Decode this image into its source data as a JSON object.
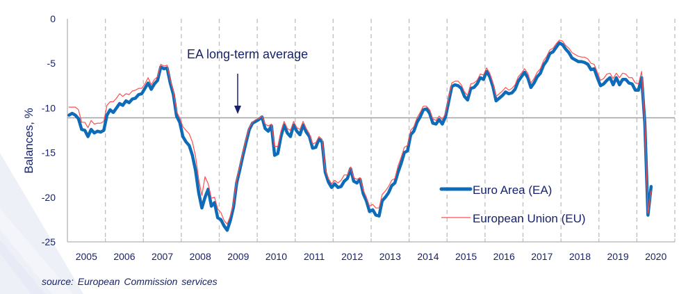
{
  "chart_data": {
    "type": "line",
    "title": "",
    "xlabel": "",
    "ylabel": "Balances, %",
    "ylim": [
      -25,
      0
    ],
    "yticks": [
      "0",
      "-5",
      "-10",
      "-15",
      "-20",
      "-25"
    ],
    "ytick_values": [
      0,
      -5,
      -10,
      -15,
      -20,
      -25
    ],
    "xticks": [
      "2005",
      "2006",
      "2007",
      "2008",
      "2009",
      "2010",
      "2011",
      "2012",
      "2013",
      "2014",
      "2015",
      "2016",
      "2017",
      "2018",
      "2019",
      "2020"
    ],
    "x_start": "2005-01",
    "x_end": "2020-05",
    "frequency": "monthly",
    "grid": "vertical dashed at year boundaries",
    "legend_position": "bottom-right",
    "reference_line": {
      "label": "EA long-term average",
      "value": -11.1
    },
    "annotations": [
      {
        "text": "EA long-term average",
        "points_to": "2009",
        "value": -11.1
      }
    ],
    "series": [
      {
        "name": "Euro Area (EA)",
        "color": "#0e6bb8",
        "values": [
          -10.8,
          -10.6,
          -10.8,
          -11.2,
          -12.4,
          -12.5,
          -13.2,
          -12.4,
          -12.8,
          -12.6,
          -12.7,
          -12.5,
          -10.8,
          -10.2,
          -10.5,
          -10.0,
          -9.5,
          -9.7,
          -9.2,
          -9.4,
          -9.0,
          -8.9,
          -8.5,
          -8.4,
          -7.8,
          -7.2,
          -7.9,
          -7.3,
          -6.9,
          -5.4,
          -5.6,
          -5.5,
          -7.2,
          -8.5,
          -10.9,
          -11.6,
          -13.2,
          -13.8,
          -14.2,
          -15.3,
          -17.0,
          -19.5,
          -21.2,
          -20.0,
          -19.1,
          -21.0,
          -20.6,
          -22.3,
          -22.5,
          -23.2,
          -23.7,
          -22.6,
          -21.1,
          -18.4,
          -16.9,
          -15.3,
          -13.8,
          -12.4,
          -11.7,
          -11.5,
          -11.3,
          -11.0,
          -12.3,
          -12.6,
          -12.0,
          -15.3,
          -15.1,
          -13.2,
          -11.9,
          -12.8,
          -13.2,
          -11.9,
          -12.6,
          -13.0,
          -11.9,
          -12.7,
          -13.2,
          -14.5,
          -14.4,
          -13.5,
          -13.8,
          -17.2,
          -18.3,
          -18.9,
          -18.5,
          -18.9,
          -18.8,
          -18.2,
          -17.9,
          -16.8,
          -18.2,
          -18.4,
          -18.0,
          -19.6,
          -20.4,
          -21.6,
          -21.4,
          -22.0,
          -22.1,
          -20.4,
          -20.0,
          -19.5,
          -18.7,
          -18.4,
          -17.2,
          -16.2,
          -15.0,
          -14.8,
          -13.0,
          -12.6,
          -11.6,
          -11.0,
          -10.2,
          -10.1,
          -10.6,
          -11.7,
          -11.8,
          -11.3,
          -11.8,
          -11.0,
          -9.3,
          -7.6,
          -7.4,
          -7.5,
          -7.8,
          -8.7,
          -9.1,
          -7.8,
          -7.7,
          -7.3,
          -6.6,
          -6.8,
          -5.9,
          -6.5,
          -7.6,
          -9.2,
          -8.9,
          -8.6,
          -8.2,
          -8.4,
          -8.3,
          -7.9,
          -7.0,
          -6.5,
          -6.0,
          -6.6,
          -7.7,
          -7.2,
          -6.5,
          -6.1,
          -5.2,
          -4.7,
          -3.9,
          -3.7,
          -3.2,
          -2.7,
          -2.9,
          -3.4,
          -3.8,
          -4.4,
          -4.6,
          -4.8,
          -4.8,
          -4.9,
          -5.1,
          -5.7,
          -5.6,
          -6.6,
          -7.5,
          -7.3,
          -6.9,
          -6.6,
          -7.4,
          -6.6,
          -7.4,
          -6.8,
          -6.8,
          -7.2,
          -7.3,
          -8.0,
          -8.0,
          -6.6,
          -11.6,
          -22.0,
          -18.8
        ]
      },
      {
        "name": "European Union (EU)",
        "color": "#ff4d4d",
        "values": [
          -9.9,
          -9.9,
          -9.9,
          -10.2,
          -11.6,
          -11.6,
          -12.2,
          -11.4,
          -11.8,
          -11.7,
          -11.7,
          -11.5,
          -9.7,
          -9.3,
          -9.3,
          -8.9,
          -8.4,
          -8.7,
          -8.4,
          -8.5,
          -8.1,
          -8.0,
          -7.8,
          -7.8,
          -7.3,
          -6.6,
          -7.4,
          -6.8,
          -6.5,
          -5.1,
          -5.3,
          -5.2,
          -6.9,
          -8.1,
          -10.4,
          -11.1,
          -12.1,
          -12.5,
          -12.9,
          -13.8,
          -15.4,
          -18.0,
          -19.8,
          -17.7,
          -18.5,
          -20.1,
          -20.0,
          -21.3,
          -21.7,
          -22.6,
          -23.0,
          -22.1,
          -20.7,
          -18.1,
          -16.6,
          -15.0,
          -13.5,
          -12.2,
          -11.6,
          -11.3,
          -11.2,
          -10.9,
          -11.8,
          -12.0,
          -11.8,
          -14.3,
          -14.3,
          -12.6,
          -11.5,
          -12.3,
          -12.5,
          -11.5,
          -12.2,
          -12.4,
          -11.5,
          -12.3,
          -12.9,
          -14.0,
          -13.9,
          -13.2,
          -13.5,
          -16.9,
          -17.9,
          -18.5,
          -18.1,
          -18.4,
          -18.1,
          -17.5,
          -17.5,
          -16.6,
          -17.8,
          -18.0,
          -17.8,
          -19.2,
          -20.0,
          -21.0,
          -20.8,
          -21.2,
          -21.2,
          -19.7,
          -19.3,
          -18.8,
          -18.1,
          -17.9,
          -16.5,
          -15.5,
          -14.4,
          -14.2,
          -12.5,
          -12.1,
          -11.1,
          -10.5,
          -9.8,
          -9.8,
          -10.2,
          -11.2,
          -11.4,
          -10.9,
          -11.3,
          -10.6,
          -8.9,
          -7.2,
          -7.0,
          -7.0,
          -7.4,
          -8.2,
          -8.6,
          -7.3,
          -7.2,
          -6.9,
          -6.2,
          -6.3,
          -5.5,
          -6.1,
          -7.2,
          -8.7,
          -8.4,
          -8.1,
          -7.7,
          -8.0,
          -7.8,
          -7.4,
          -6.5,
          -6.1,
          -5.6,
          -6.1,
          -7.2,
          -6.7,
          -6.0,
          -5.6,
          -4.7,
          -4.2,
          -3.5,
          -3.3,
          -2.8,
          -2.4,
          -2.5,
          -3.0,
          -3.3,
          -3.8,
          -4.0,
          -4.2,
          -4.3,
          -4.3,
          -4.5,
          -5.0,
          -5.1,
          -6.0,
          -6.9,
          -6.7,
          -6.2,
          -6.1,
          -6.7,
          -6.1,
          -6.6,
          -6.1,
          -6.2,
          -6.6,
          -6.6,
          -7.2,
          -7.3,
          -5.9,
          -11.5,
          -21.8,
          -19.3
        ]
      }
    ]
  },
  "footer": {
    "source": "source: European Commission services"
  }
}
